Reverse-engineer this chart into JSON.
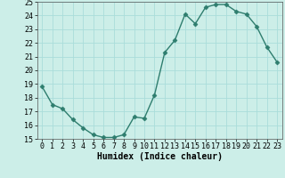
{
  "x": [
    0,
    1,
    2,
    3,
    4,
    5,
    6,
    7,
    8,
    9,
    10,
    11,
    12,
    13,
    14,
    15,
    16,
    17,
    18,
    19,
    20,
    21,
    22,
    23
  ],
  "y": [
    18.8,
    17.5,
    17.2,
    16.4,
    15.8,
    15.3,
    15.1,
    15.1,
    15.3,
    16.6,
    16.5,
    18.2,
    21.3,
    22.2,
    24.1,
    23.4,
    24.6,
    24.8,
    24.8,
    24.3,
    24.1,
    23.2,
    21.7,
    20.6
  ],
  "line_color": "#2e7d6e",
  "marker_color": "#2e7d6e",
  "bg_color": "#cceee8",
  "grid_color": "#aaddda",
  "xlabel": "Humidex (Indice chaleur)",
  "ylim": [
    15,
    25
  ],
  "xlim_min": -0.5,
  "xlim_max": 23.5,
  "yticks": [
    15,
    16,
    17,
    18,
    19,
    20,
    21,
    22,
    23,
    24,
    25
  ],
  "xtick_labels": [
    "0",
    "1",
    "2",
    "3",
    "4",
    "5",
    "6",
    "7",
    "8",
    "9",
    "10",
    "11",
    "12",
    "13",
    "14",
    "15",
    "16",
    "17",
    "18",
    "19",
    "20",
    "21",
    "22",
    "23"
  ],
  "xlabel_fontsize": 7,
  "tick_fontsize": 6,
  "line_width": 1.0,
  "marker_size": 2.5
}
